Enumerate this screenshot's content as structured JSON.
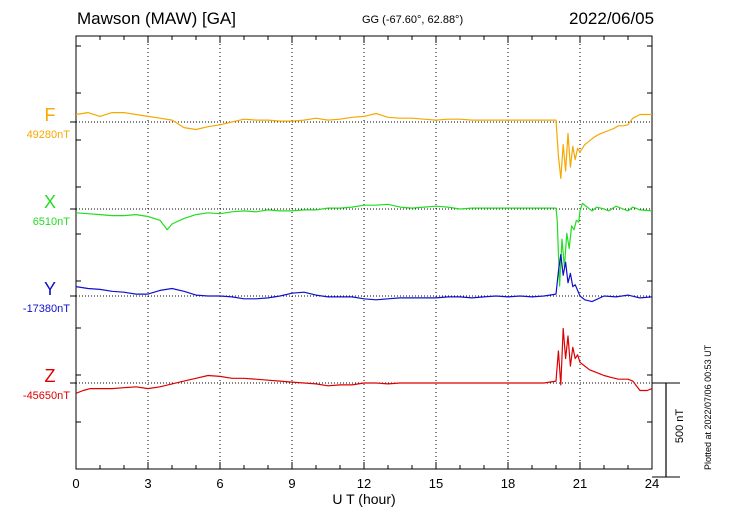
{
  "header": {
    "station": "Mawson (MAW)  [GA]",
    "coords": "GG (-67.60°,  62.88°)",
    "date": "2022/06/05"
  },
  "side_note": "Plotted at 2022/07/06 00:53 UT",
  "chart_data": {
    "type": "line",
    "xlabel": "U T (hour)",
    "xlim": [
      0,
      24
    ],
    "xticks": [
      "0",
      "3",
      "6",
      "9",
      "12",
      "15",
      "18",
      "21",
      "24"
    ],
    "grid": true,
    "scale_bar": {
      "label": "500 nT",
      "value_nT": 500
    },
    "series": [
      {
        "name": "F",
        "baseline_label": "49280nT",
        "baseline_nT": 49280,
        "color": "#f5a800",
        "x": [
          0,
          0.5,
          1,
          1.5,
          2,
          2.5,
          3,
          3.5,
          4,
          4.5,
          5,
          5.5,
          6,
          6.5,
          7,
          7.5,
          8,
          8.5,
          9,
          9.5,
          10,
          10.5,
          11,
          11.5,
          12,
          12.5,
          13,
          13.5,
          14,
          14.5,
          15,
          15.5,
          16,
          16.5,
          17,
          17.5,
          18,
          18.5,
          19,
          19.5,
          20,
          20.1,
          20.2,
          20.3,
          20.4,
          20.5,
          20.6,
          20.7,
          20.8,
          20.9,
          21,
          21.2,
          21.4,
          21.6,
          21.8,
          22,
          22.2,
          22.4,
          22.6,
          22.8,
          23,
          23.2,
          23.5,
          23.8,
          24
        ],
        "values": [
          49320,
          49330,
          49310,
          49330,
          49330,
          49320,
          49310,
          49300,
          49290,
          49250,
          49240,
          49255,
          49265,
          49280,
          49295,
          49290,
          49290,
          49285,
          49285,
          49290,
          49300,
          49290,
          49295,
          49305,
          49310,
          49325,
          49305,
          49300,
          49300,
          49295,
          49290,
          49295,
          49295,
          49290,
          49290,
          49290,
          49290,
          49290,
          49290,
          49290,
          49290,
          49100,
          48980,
          49160,
          49020,
          49220,
          49040,
          49150,
          49080,
          49140,
          49120,
          49160,
          49180,
          49200,
          49215,
          49225,
          49235,
          49245,
          49260,
          49260,
          49265,
          49300,
          49320,
          49320,
          49320
        ]
      },
      {
        "name": "X",
        "baseline_label": "6510nT",
        "baseline_nT": 6510,
        "color": "#22dd22",
        "x": [
          0,
          0.5,
          1,
          1.5,
          2,
          2.5,
          3,
          3.5,
          3.8,
          4,
          4.5,
          5,
          5.5,
          6,
          6.5,
          7,
          7.5,
          8,
          8.5,
          9,
          9.5,
          10,
          10.5,
          11,
          11.5,
          12,
          12.5,
          13,
          13.5,
          14,
          14.5,
          15,
          15.5,
          16,
          16.5,
          17,
          17.5,
          18,
          18.5,
          19,
          19.5,
          20,
          20.05,
          20.15,
          20.25,
          20.35,
          20.45,
          20.55,
          20.65,
          20.75,
          20.85,
          20.95,
          21,
          21.1,
          21.3,
          21.5,
          21.7,
          22,
          22.2,
          22.5,
          22.8,
          23,
          23.2,
          23.5,
          24
        ],
        "values": [
          6490,
          6485,
          6480,
          6475,
          6475,
          6480,
          6470,
          6450,
          6400,
          6430,
          6460,
          6480,
          6490,
          6485,
          6495,
          6500,
          6495,
          6505,
          6500,
          6500,
          6505,
          6505,
          6515,
          6515,
          6520,
          6530,
          6530,
          6535,
          6520,
          6515,
          6520,
          6525,
          6520,
          6510,
          6515,
          6515,
          6515,
          6515,
          6515,
          6515,
          6515,
          6515,
          6450,
          6100,
          6350,
          6200,
          6380,
          6300,
          6420,
          6400,
          6450,
          6440,
          6500,
          6540,
          6520,
          6500,
          6520,
          6510,
          6500,
          6525,
          6510,
          6500,
          6520,
          6505,
          6500
        ]
      },
      {
        "name": "Y",
        "baseline_label": "-17380nT",
        "baseline_nT": -17380,
        "color": "#1010cc",
        "x": [
          0,
          0.5,
          1,
          1.5,
          2,
          2.5,
          3,
          3.5,
          4,
          4.5,
          5,
          5.5,
          6,
          6.5,
          7,
          7.5,
          8,
          8.5,
          9,
          9.5,
          10,
          10.5,
          11,
          11.5,
          12,
          12.5,
          13,
          13.5,
          14,
          14.5,
          15,
          15.5,
          16,
          16.5,
          17,
          17.5,
          18,
          18.5,
          19,
          19.5,
          20,
          20.1,
          20.2,
          20.3,
          20.4,
          20.5,
          20.6,
          20.7,
          20.8,
          20.9,
          21,
          21.2,
          21.5,
          22,
          22.5,
          23,
          23.5,
          24
        ],
        "values": [
          -17330,
          -17340,
          -17345,
          -17355,
          -17360,
          -17370,
          -17370,
          -17350,
          -17340,
          -17355,
          -17375,
          -17380,
          -17380,
          -17385,
          -17395,
          -17395,
          -17390,
          -17380,
          -17365,
          -17360,
          -17375,
          -17385,
          -17385,
          -17385,
          -17395,
          -17400,
          -17395,
          -17390,
          -17390,
          -17390,
          -17390,
          -17385,
          -17385,
          -17390,
          -17385,
          -17380,
          -17385,
          -17380,
          -17385,
          -17380,
          -17370,
          -17250,
          -17160,
          -17270,
          -17200,
          -17310,
          -17260,
          -17330,
          -17320,
          -17350,
          -17380,
          -17400,
          -17410,
          -17380,
          -17385,
          -17375,
          -17390,
          -17385
        ]
      },
      {
        "name": "Z",
        "baseline_label": "-45650nT",
        "baseline_nT": -45650,
        "color": "#dd0000",
        "x": [
          0,
          0.3,
          0.6,
          1,
          1.5,
          2,
          2.5,
          3,
          3.5,
          4,
          4.5,
          5,
          5.5,
          6,
          6.5,
          7,
          7.5,
          8,
          8.5,
          9,
          9.5,
          10,
          10.5,
          11,
          11.5,
          12,
          12.5,
          13,
          13.5,
          14,
          14.5,
          15,
          15.5,
          16,
          16.5,
          17,
          17.5,
          18,
          18.5,
          19,
          19.5,
          20,
          20.1,
          20.2,
          20.3,
          20.4,
          20.5,
          20.6,
          20.7,
          20.8,
          20.9,
          21,
          21.2,
          21.4,
          21.6,
          21.8,
          22,
          22.3,
          22.6,
          23,
          23.2,
          23.5,
          23.8,
          24
        ],
        "values": [
          -45705,
          -45690,
          -45680,
          -45680,
          -45680,
          -45675,
          -45670,
          -45680,
          -45670,
          -45655,
          -45640,
          -45625,
          -45610,
          -45615,
          -45625,
          -45625,
          -45630,
          -45635,
          -45640,
          -45645,
          -45650,
          -45655,
          -45665,
          -45660,
          -45660,
          -45650,
          -45650,
          -45655,
          -45650,
          -45650,
          -45650,
          -45650,
          -45650,
          -45650,
          -45650,
          -45650,
          -45650,
          -45650,
          -45650,
          -45650,
          -45650,
          -45640,
          -45480,
          -45660,
          -45360,
          -45520,
          -45400,
          -45560,
          -45460,
          -45520,
          -45500,
          -45540,
          -45560,
          -45580,
          -45590,
          -45600,
          -45610,
          -45620,
          -45630,
          -45630,
          -45640,
          -45690,
          -45690,
          -45680
        ]
      }
    ]
  }
}
